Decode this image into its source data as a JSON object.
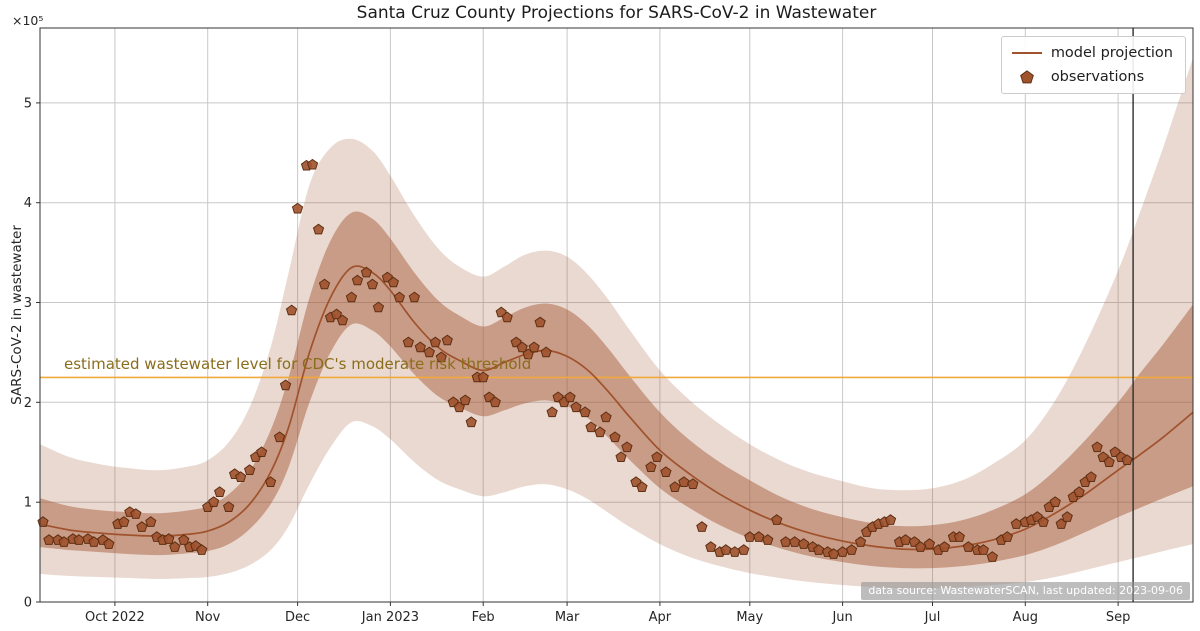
{
  "chart_data": {
    "type": "line",
    "title": "Santa Cruz County Projections for SARS-CoV-2 in Wastewater",
    "xlabel": "",
    "ylabel": "SARS-CoV-2 in wastewater",
    "y_offset_text": "×10⁵",
    "x_unit": "days since 2022-10-01",
    "xlim": [
      -25,
      360
    ],
    "ylim": [
      0,
      5.75
    ],
    "grid": true,
    "y_ticks": [
      0,
      1,
      2,
      3,
      4,
      5
    ],
    "x_ticks": [
      {
        "day": 0,
        "label": "Oct 2022"
      },
      {
        "day": 31,
        "label": "Nov"
      },
      {
        "day": 61,
        "label": "Dec"
      },
      {
        "day": 92,
        "label": "Jan 2023"
      },
      {
        "day": 123,
        "label": "Feb"
      },
      {
        "day": 151,
        "label": "Mar"
      },
      {
        "day": 182,
        "label": "Apr"
      },
      {
        "day": 212,
        "label": "May"
      },
      {
        "day": 243,
        "label": "Jun"
      },
      {
        "day": 273,
        "label": "Jul"
      },
      {
        "day": 304,
        "label": "Aug"
      },
      {
        "day": 335,
        "label": "Sep"
      }
    ],
    "legend": {
      "position": "upper right",
      "entries": [
        {
          "label": "model projection",
          "type": "line"
        },
        {
          "label": "observations",
          "type": "pentagon"
        }
      ]
    },
    "threshold": {
      "value": 2.25,
      "label": "estimated wastewater level for CDC's moderate risk threshold",
      "color": "#f2a93b",
      "label_color": "#8a6d1b",
      "label_day": -17
    },
    "vline": {
      "day": 340,
      "date": "2023-09-06",
      "color": "#2e2e2e"
    },
    "annotation": {
      "text": "data source: WastewaterSCAN, last updated: 2023-09-06",
      "bg": "rgba(145,145,145,0.6)",
      "color": "#ffffff"
    },
    "colors": {
      "model": "#a0522d",
      "marker_fill": "#a0522d",
      "marker_edge": "#5e2f12",
      "inner_band": "rgba(160,82,45,0.45)",
      "outer_band": "rgba(160,82,45,0.22)",
      "grid": "#c8c8c8",
      "spine": "#333333",
      "text": "#262626"
    },
    "model": {
      "x": [
        -25,
        -15,
        -5,
        5,
        15,
        25,
        31,
        38,
        45,
        52,
        58,
        65,
        72,
        79,
        86,
        92,
        100,
        108,
        115,
        123,
        130,
        137,
        144,
        151,
        158,
        165,
        172,
        182,
        192,
        202,
        212,
        222,
        232,
        243,
        253,
        263,
        273,
        283,
        293,
        304,
        314,
        324,
        335,
        342,
        350,
        360
      ],
      "y": [
        0.78,
        0.72,
        0.69,
        0.67,
        0.66,
        0.68,
        0.71,
        0.8,
        0.98,
        1.3,
        1.75,
        2.5,
        3.05,
        3.35,
        3.3,
        3.12,
        2.8,
        2.55,
        2.42,
        2.32,
        2.4,
        2.48,
        2.52,
        2.46,
        2.32,
        2.1,
        1.85,
        1.52,
        1.28,
        1.08,
        0.92,
        0.79,
        0.69,
        0.61,
        0.56,
        0.53,
        0.53,
        0.56,
        0.62,
        0.73,
        0.89,
        1.08,
        1.32,
        1.47,
        1.65,
        1.9
      ]
    },
    "bands": {
      "x": [
        -25,
        -15,
        -5,
        5,
        15,
        25,
        31,
        38,
        45,
        52,
        58,
        65,
        72,
        79,
        86,
        92,
        100,
        108,
        115,
        123,
        130,
        137,
        144,
        151,
        158,
        165,
        172,
        182,
        192,
        202,
        212,
        222,
        232,
        243,
        253,
        263,
        273,
        283,
        293,
        304,
        314,
        324,
        335,
        342,
        350,
        360
      ],
      "inner_low": [
        0.55,
        0.52,
        0.5,
        0.48,
        0.47,
        0.49,
        0.51,
        0.58,
        0.73,
        0.98,
        1.35,
        2.0,
        2.5,
        2.78,
        2.72,
        2.56,
        2.28,
        2.06,
        1.95,
        1.86,
        1.92,
        1.99,
        2.02,
        1.96,
        1.84,
        1.64,
        1.42,
        1.14,
        0.94,
        0.77,
        0.64,
        0.54,
        0.46,
        0.4,
        0.36,
        0.34,
        0.34,
        0.36,
        0.4,
        0.47,
        0.57,
        0.7,
        0.85,
        0.94,
        1.04,
        1.16
      ],
      "inner_high": [
        1.04,
        0.96,
        0.92,
        0.9,
        0.89,
        0.92,
        0.96,
        1.08,
        1.31,
        1.72,
        2.25,
        3.05,
        3.62,
        3.9,
        3.84,
        3.64,
        3.3,
        3.02,
        2.87,
        2.76,
        2.85,
        2.95,
        2.99,
        2.93,
        2.77,
        2.53,
        2.26,
        1.9,
        1.62,
        1.4,
        1.22,
        1.06,
        0.94,
        0.85,
        0.79,
        0.76,
        0.77,
        0.82,
        0.92,
        1.08,
        1.32,
        1.62,
        2.0,
        2.28,
        2.58,
        2.98
      ],
      "outer_low": [
        0.28,
        0.26,
        0.25,
        0.24,
        0.23,
        0.24,
        0.25,
        0.29,
        0.37,
        0.52,
        0.76,
        1.18,
        1.55,
        1.8,
        1.76,
        1.63,
        1.4,
        1.22,
        1.13,
        1.06,
        1.1,
        1.16,
        1.18,
        1.13,
        1.03,
        0.89,
        0.75,
        0.58,
        0.45,
        0.36,
        0.29,
        0.24,
        0.2,
        0.17,
        0.15,
        0.14,
        0.14,
        0.15,
        0.17,
        0.2,
        0.25,
        0.32,
        0.4,
        0.45,
        0.51,
        0.58
      ],
      "outer_high": [
        1.58,
        1.45,
        1.38,
        1.34,
        1.32,
        1.36,
        1.42,
        1.6,
        1.95,
        2.55,
        3.3,
        4.18,
        4.55,
        4.64,
        4.52,
        4.27,
        3.87,
        3.54,
        3.36,
        3.26,
        3.36,
        3.48,
        3.52,
        3.46,
        3.28,
        3.02,
        2.72,
        2.32,
        2.02,
        1.78,
        1.58,
        1.42,
        1.3,
        1.21,
        1.14,
        1.12,
        1.14,
        1.22,
        1.38,
        1.62,
        2.02,
        2.58,
        3.32,
        3.88,
        4.55,
        5.45
      ]
    },
    "observations": {
      "x": [
        -24,
        -22,
        -19,
        -17,
        -14,
        -12,
        -9,
        -7,
        -4,
        -2,
        1,
        3,
        5,
        7,
        9,
        12,
        14,
        16,
        18,
        20,
        23,
        25,
        27,
        29,
        31,
        33,
        35,
        38,
        40,
        42,
        45,
        47,
        49,
        52,
        55,
        57,
        59,
        61,
        64,
        66,
        68,
        70,
        72,
        74,
        76,
        79,
        81,
        84,
        86,
        88,
        91,
        93,
        95,
        98,
        100,
        102,
        105,
        107,
        109,
        111,
        113,
        115,
        117,
        119,
        121,
        123,
        125,
        127,
        129,
        131,
        134,
        136,
        138,
        140,
        142,
        144,
        146,
        148,
        150,
        152,
        154,
        157,
        159,
        162,
        164,
        167,
        169,
        171,
        174,
        176,
        179,
        181,
        184,
        187,
        190,
        193,
        196,
        199,
        202,
        204,
        207,
        210,
        212,
        215,
        218,
        221,
        224,
        227,
        230,
        233,
        235,
        238,
        240,
        243,
        246,
        249,
        251,
        253,
        255,
        257,
        259,
        262,
        264,
        267,
        269,
        272,
        275,
        277,
        280,
        282,
        285,
        288,
        290,
        293,
        296,
        298,
        301,
        304,
        306,
        308,
        310,
        312,
        314,
        316,
        318,
        320,
        322,
        324,
        326,
        328,
        330,
        332,
        334,
        336,
        338
      ],
      "y": [
        0.8,
        0.62,
        0.62,
        0.6,
        0.63,
        0.62,
        0.63,
        0.6,
        0.62,
        0.58,
        0.78,
        0.8,
        0.9,
        0.88,
        0.75,
        0.8,
        0.65,
        0.62,
        0.63,
        0.55,
        0.62,
        0.55,
        0.56,
        0.52,
        0.95,
        1.0,
        1.1,
        0.95,
        1.28,
        1.25,
        1.32,
        1.45,
        1.5,
        1.2,
        1.65,
        2.17,
        2.92,
        3.94,
        4.37,
        4.38,
        3.73,
        3.18,
        2.85,
        2.88,
        2.82,
        3.05,
        3.22,
        3.3,
        3.18,
        2.95,
        3.25,
        3.2,
        3.05,
        2.6,
        3.05,
        2.55,
        2.5,
        2.6,
        2.45,
        2.62,
        2.0,
        1.95,
        2.02,
        1.8,
        2.25,
        2.25,
        2.05,
        2.0,
        2.9,
        2.85,
        2.6,
        2.55,
        2.48,
        2.55,
        2.8,
        2.5,
        1.9,
        2.05,
        2.0,
        2.05,
        1.95,
        1.9,
        1.75,
        1.7,
        1.85,
        1.65,
        1.45,
        1.55,
        1.2,
        1.15,
        1.35,
        1.45,
        1.3,
        1.15,
        1.2,
        1.18,
        0.75,
        0.55,
        0.5,
        0.52,
        0.5,
        0.52,
        0.65,
        0.65,
        0.62,
        0.82,
        0.6,
        0.6,
        0.58,
        0.55,
        0.52,
        0.5,
        0.48,
        0.5,
        0.52,
        0.6,
        0.7,
        0.75,
        0.78,
        0.8,
        0.82,
        0.6,
        0.62,
        0.6,
        0.55,
        0.58,
        0.52,
        0.55,
        0.65,
        0.65,
        0.55,
        0.52,
        0.52,
        0.45,
        0.62,
        0.65,
        0.78,
        0.8,
        0.82,
        0.85,
        0.8,
        0.95,
        1.0,
        0.78,
        0.85,
        1.05,
        1.1,
        1.2,
        1.25,
        1.55,
        1.45,
        1.4,
        1.5,
        1.45,
        1.42
      ]
    }
  }
}
